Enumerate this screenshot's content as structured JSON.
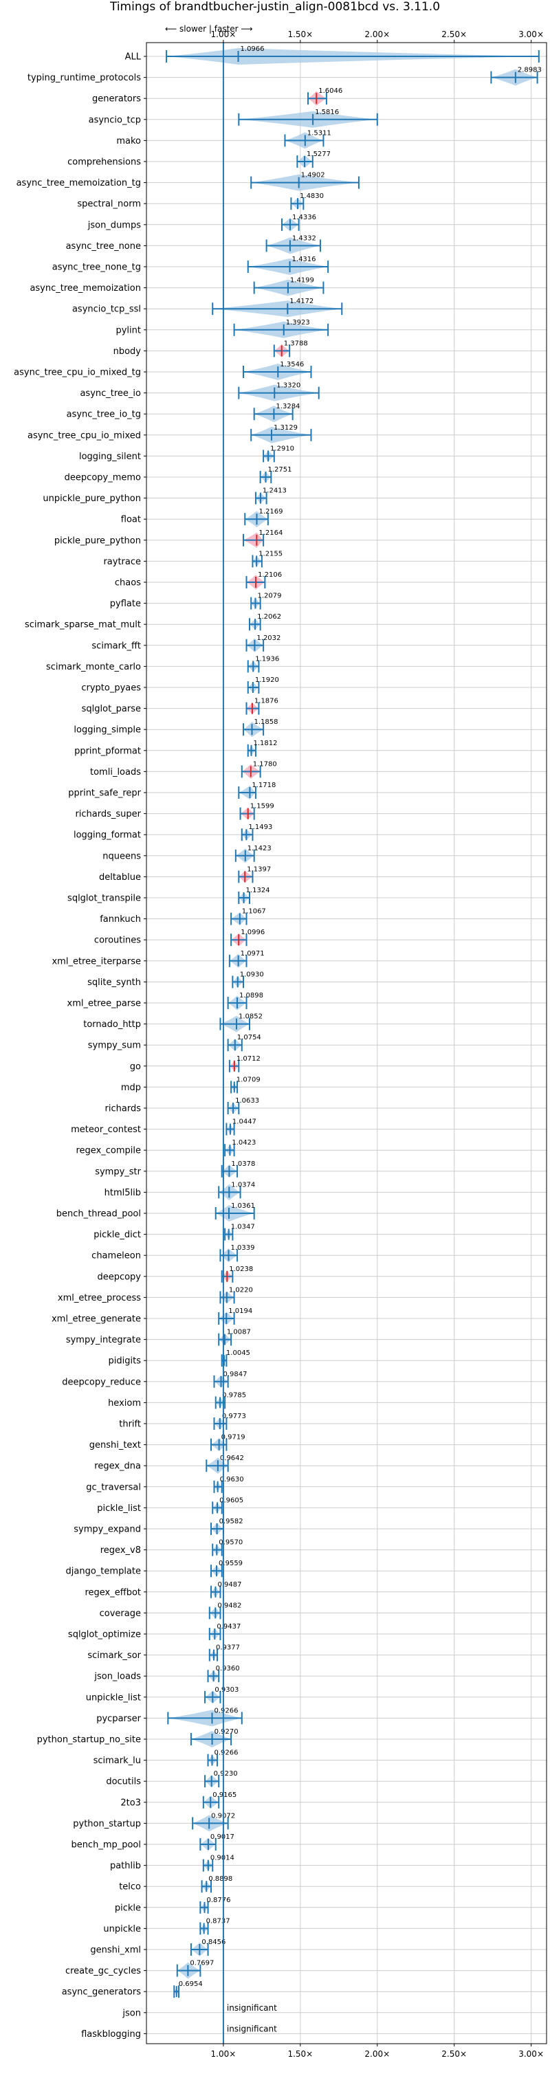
{
  "chart_data": {
    "type": "violin",
    "title": "Timings of brandtbucher-justin_align-0081bcd vs. 3.11.0",
    "direction_hint": "⟵ slower | faster ⟶",
    "xlim": [
      0.5,
      3.1
    ],
    "xticks": [
      1.0,
      1.5,
      2.0,
      2.5,
      3.0
    ],
    "xtick_labels": [
      "1.00×",
      "1.50×",
      "2.00×",
      "2.50×",
      "3.00×"
    ],
    "grid": true,
    "insignificant_label": "insignificant",
    "colors": {
      "normal": "#1f77b4",
      "fill": "#a6c8e6",
      "regression": "#d62728",
      "regression_fill": "#f4a6b8"
    },
    "rows": [
      {
        "name": "ALL",
        "value": 1.0966,
        "label": "1.0966",
        "min": 0.63,
        "max": 3.05
      },
      {
        "name": "typing_runtime_protocols",
        "value": 2.8983,
        "label": "2.8983",
        "min": 2.74,
        "max": 3.04
      },
      {
        "name": "generators",
        "value": 1.6046,
        "label": "1.6046",
        "min": 1.55,
        "max": 1.67,
        "regression": true
      },
      {
        "name": "asyncio_tcp",
        "value": 1.5816,
        "label": "1.5816",
        "min": 1.1,
        "max": 2.0
      },
      {
        "name": "mako",
        "value": 1.5311,
        "label": "1.5311",
        "min": 1.4,
        "max": 1.65
      },
      {
        "name": "comprehensions",
        "value": 1.5277,
        "label": "1.5277",
        "min": 1.48,
        "max": 1.58
      },
      {
        "name": "async_tree_memoization_tg",
        "value": 1.4902,
        "label": "1.4902",
        "min": 1.18,
        "max": 1.88
      },
      {
        "name": "spectral_norm",
        "value": 1.483,
        "label": "1.4830",
        "min": 1.44,
        "max": 1.52
      },
      {
        "name": "json_dumps",
        "value": 1.4336,
        "label": "1.4336",
        "min": 1.38,
        "max": 1.49
      },
      {
        "name": "async_tree_none",
        "value": 1.4332,
        "label": "1.4332",
        "min": 1.28,
        "max": 1.63
      },
      {
        "name": "async_tree_none_tg",
        "value": 1.4316,
        "label": "1.4316",
        "min": 1.16,
        "max": 1.68
      },
      {
        "name": "async_tree_memoization",
        "value": 1.4199,
        "label": "1.4199",
        "min": 1.2,
        "max": 1.65
      },
      {
        "name": "asyncio_tcp_ssl",
        "value": 1.4172,
        "label": "1.4172",
        "min": 0.93,
        "max": 1.77
      },
      {
        "name": "pylint",
        "value": 1.3923,
        "label": "1.3923",
        "min": 1.07,
        "max": 1.68
      },
      {
        "name": "nbody",
        "value": 1.3788,
        "label": "1.3788",
        "min": 1.33,
        "max": 1.43,
        "regression": true
      },
      {
        "name": "async_tree_cpu_io_mixed_tg",
        "value": 1.3546,
        "label": "1.3546",
        "min": 1.13,
        "max": 1.57
      },
      {
        "name": "async_tree_io",
        "value": 1.332,
        "label": "1.3320",
        "min": 1.1,
        "max": 1.62
      },
      {
        "name": "async_tree_io_tg",
        "value": 1.3284,
        "label": "1.3284",
        "min": 1.2,
        "max": 1.45
      },
      {
        "name": "async_tree_cpu_io_mixed",
        "value": 1.3129,
        "label": "1.3129",
        "min": 1.18,
        "max": 1.57
      },
      {
        "name": "logging_silent",
        "value": 1.291,
        "label": "1.2910",
        "min": 1.26,
        "max": 1.33
      },
      {
        "name": "deepcopy_memo",
        "value": 1.2751,
        "label": "1.2751",
        "min": 1.24,
        "max": 1.31
      },
      {
        "name": "unpickle_pure_python",
        "value": 1.2413,
        "label": "1.2413",
        "min": 1.21,
        "max": 1.28
      },
      {
        "name": "float",
        "value": 1.2169,
        "label": "1.2169",
        "min": 1.14,
        "max": 1.29
      },
      {
        "name": "pickle_pure_python",
        "value": 1.2164,
        "label": "1.2164",
        "min": 1.13,
        "max": 1.26,
        "regression": true
      },
      {
        "name": "raytrace",
        "value": 1.2155,
        "label": "1.2155",
        "min": 1.19,
        "max": 1.25
      },
      {
        "name": "chaos",
        "value": 1.2106,
        "label": "1.2106",
        "min": 1.15,
        "max": 1.27,
        "regression": true
      },
      {
        "name": "pyflate",
        "value": 1.2079,
        "label": "1.2079",
        "min": 1.18,
        "max": 1.24
      },
      {
        "name": "scimark_sparse_mat_mult",
        "value": 1.2062,
        "label": "1.2062",
        "min": 1.17,
        "max": 1.24
      },
      {
        "name": "scimark_fft",
        "value": 1.2032,
        "label": "1.2032",
        "min": 1.15,
        "max": 1.26
      },
      {
        "name": "scimark_monte_carlo",
        "value": 1.1936,
        "label": "1.1936",
        "min": 1.16,
        "max": 1.23
      },
      {
        "name": "crypto_pyaes",
        "value": 1.192,
        "label": "1.1920",
        "min": 1.16,
        "max": 1.23
      },
      {
        "name": "sqlglot_parse",
        "value": 1.1876,
        "label": "1.1876",
        "min": 1.15,
        "max": 1.23,
        "regression": true
      },
      {
        "name": "logging_simple",
        "value": 1.1858,
        "label": "1.1858",
        "min": 1.13,
        "max": 1.26
      },
      {
        "name": "pprint_pformat",
        "value": 1.1812,
        "label": "1.1812",
        "min": 1.16,
        "max": 1.21
      },
      {
        "name": "tomli_loads",
        "value": 1.178,
        "label": "1.1780",
        "min": 1.12,
        "max": 1.24,
        "regression": true
      },
      {
        "name": "pprint_safe_repr",
        "value": 1.1718,
        "label": "1.1718",
        "min": 1.1,
        "max": 1.21
      },
      {
        "name": "richards_super",
        "value": 1.1599,
        "label": "1.1599",
        "min": 1.11,
        "max": 1.2,
        "regression": true
      },
      {
        "name": "logging_format",
        "value": 1.1493,
        "label": "1.1493",
        "min": 1.12,
        "max": 1.19
      },
      {
        "name": "nqueens",
        "value": 1.1423,
        "label": "1.1423",
        "min": 1.08,
        "max": 1.2
      },
      {
        "name": "deltablue",
        "value": 1.1397,
        "label": "1.1397",
        "min": 1.1,
        "max": 1.19,
        "regression": true
      },
      {
        "name": "sqlglot_transpile",
        "value": 1.1324,
        "label": "1.1324",
        "min": 1.1,
        "max": 1.17
      },
      {
        "name": "fannkuch",
        "value": 1.1067,
        "label": "1.1067",
        "min": 1.05,
        "max": 1.15
      },
      {
        "name": "coroutines",
        "value": 1.0996,
        "label": "1.0996",
        "min": 1.05,
        "max": 1.15,
        "regression": true
      },
      {
        "name": "xml_etree_iterparse",
        "value": 1.0971,
        "label": "1.0971",
        "min": 1.04,
        "max": 1.15
      },
      {
        "name": "sqlite_synth",
        "value": 1.093,
        "label": "1.0930",
        "min": 1.06,
        "max": 1.13
      },
      {
        "name": "xml_etree_parse",
        "value": 1.0898,
        "label": "1.0898",
        "min": 1.03,
        "max": 1.15
      },
      {
        "name": "tornado_http",
        "value": 1.0852,
        "label": "1.0852",
        "min": 0.98,
        "max": 1.17
      },
      {
        "name": "sympy_sum",
        "value": 1.0754,
        "label": "1.0754",
        "min": 1.03,
        "max": 1.12
      },
      {
        "name": "go",
        "value": 1.0712,
        "label": "1.0712",
        "min": 1.04,
        "max": 1.1,
        "regression": true
      },
      {
        "name": "mdp",
        "value": 1.0709,
        "label": "1.0709",
        "min": 1.05,
        "max": 1.09
      },
      {
        "name": "richards",
        "value": 1.0633,
        "label": "1.0633",
        "min": 1.03,
        "max": 1.1
      },
      {
        "name": "meteor_contest",
        "value": 1.0447,
        "label": "1.0447",
        "min": 1.02,
        "max": 1.07
      },
      {
        "name": "regex_compile",
        "value": 1.0423,
        "label": "1.0423",
        "min": 1.01,
        "max": 1.07
      },
      {
        "name": "sympy_str",
        "value": 1.0378,
        "label": "1.0378",
        "min": 0.99,
        "max": 1.09
      },
      {
        "name": "html5lib",
        "value": 1.0374,
        "label": "1.0374",
        "min": 0.97,
        "max": 1.11
      },
      {
        "name": "bench_thread_pool",
        "value": 1.0361,
        "label": "1.0361",
        "min": 0.95,
        "max": 1.2
      },
      {
        "name": "pickle_dict",
        "value": 1.0347,
        "label": "1.0347",
        "min": 1.01,
        "max": 1.06
      },
      {
        "name": "chameleon",
        "value": 1.0339,
        "label": "1.0339",
        "min": 0.98,
        "max": 1.09
      },
      {
        "name": "deepcopy",
        "value": 1.0238,
        "label": "1.0238",
        "min": 0.99,
        "max": 1.06,
        "regression": true
      },
      {
        "name": "xml_etree_process",
        "value": 1.022,
        "label": "1.0220",
        "min": 0.98,
        "max": 1.07
      },
      {
        "name": "xml_etree_generate",
        "value": 1.0194,
        "label": "1.0194",
        "min": 0.97,
        "max": 1.07
      },
      {
        "name": "sympy_integrate",
        "value": 1.0087,
        "label": "1.0087",
        "min": 0.97,
        "max": 1.05
      },
      {
        "name": "pidigits",
        "value": 1.0045,
        "label": "1.0045",
        "min": 0.99,
        "max": 1.02
      },
      {
        "name": "deepcopy_reduce",
        "value": 0.9847,
        "label": "0.9847",
        "min": 0.94,
        "max": 1.03
      },
      {
        "name": "hexiom",
        "value": 0.9785,
        "label": "0.9785",
        "min": 0.95,
        "max": 1.01
      },
      {
        "name": "thrift",
        "value": 0.9773,
        "label": "0.9773",
        "min": 0.94,
        "max": 1.02
      },
      {
        "name": "genshi_text",
        "value": 0.9719,
        "label": "0.9719",
        "min": 0.92,
        "max": 1.02
      },
      {
        "name": "regex_dna",
        "value": 0.9642,
        "label": "0.9642",
        "min": 0.89,
        "max": 1.03
      },
      {
        "name": "gc_traversal",
        "value": 0.963,
        "label": "0.9630",
        "min": 0.94,
        "max": 0.99
      },
      {
        "name": "pickle_list",
        "value": 0.9605,
        "label": "0.9605",
        "min": 0.93,
        "max": 0.99
      },
      {
        "name": "sympy_expand",
        "value": 0.9582,
        "label": "0.9582",
        "min": 0.92,
        "max": 1.0
      },
      {
        "name": "regex_v8",
        "value": 0.957,
        "label": "0.9570",
        "min": 0.93,
        "max": 0.99
      },
      {
        "name": "django_template",
        "value": 0.9559,
        "label": "0.9559",
        "min": 0.92,
        "max": 0.99
      },
      {
        "name": "regex_effbot",
        "value": 0.9487,
        "label": "0.9487",
        "min": 0.92,
        "max": 0.98
      },
      {
        "name": "coverage",
        "value": 0.9482,
        "label": "0.9482",
        "min": 0.91,
        "max": 0.98
      },
      {
        "name": "sqlglot_optimize",
        "value": 0.9437,
        "label": "0.9437",
        "min": 0.91,
        "max": 0.98
      },
      {
        "name": "scimark_sor",
        "value": 0.9377,
        "label": "0.9377",
        "min": 0.91,
        "max": 0.96
      },
      {
        "name": "json_loads",
        "value": 0.936,
        "label": "0.9360",
        "min": 0.9,
        "max": 0.97
      },
      {
        "name": "unpickle_list",
        "value": 0.9303,
        "label": "0.9303",
        "min": 0.88,
        "max": 0.98
      },
      {
        "name": "pycparser",
        "value": 0.9266,
        "label": "0.9266",
        "min": 0.64,
        "max": 1.12
      },
      {
        "name": "python_startup_no_site",
        "value": 0.927,
        "label": "0.9270",
        "min": 0.79,
        "max": 1.05
      },
      {
        "name": "scimark_lu",
        "value": 0.9266,
        "label": "0.9266",
        "min": 0.9,
        "max": 0.96
      },
      {
        "name": "docutils",
        "value": 0.923,
        "label": "0.9230",
        "min": 0.88,
        "max": 0.97
      },
      {
        "name": "2to3",
        "value": 0.9165,
        "label": "0.9165",
        "min": 0.87,
        "max": 0.97
      },
      {
        "name": "python_startup",
        "value": 0.9072,
        "label": "0.9072",
        "min": 0.8,
        "max": 1.03
      },
      {
        "name": "bench_mp_pool",
        "value": 0.9017,
        "label": "0.9017",
        "min": 0.85,
        "max": 0.95
      },
      {
        "name": "pathlib",
        "value": 0.9014,
        "label": "0.9014",
        "min": 0.87,
        "max": 0.93
      },
      {
        "name": "telco",
        "value": 0.8898,
        "label": "0.8898",
        "min": 0.86,
        "max": 0.92
      },
      {
        "name": "pickle",
        "value": 0.8776,
        "label": "0.8776",
        "min": 0.85,
        "max": 0.9
      },
      {
        "name": "unpickle",
        "value": 0.8737,
        "label": "0.8737",
        "min": 0.85,
        "max": 0.9
      },
      {
        "name": "genshi_xml",
        "value": 0.8456,
        "label": "0.8456",
        "min": 0.79,
        "max": 0.9
      },
      {
        "name": "create_gc_cycles",
        "value": 0.7697,
        "label": "0.7697",
        "min": 0.7,
        "max": 0.85
      },
      {
        "name": "async_generators",
        "value": 0.6954,
        "label": "0.6954",
        "min": 0.68,
        "max": 0.71
      },
      {
        "name": "json",
        "insignificant": true
      },
      {
        "name": "flaskblogging",
        "insignificant": true
      }
    ]
  }
}
